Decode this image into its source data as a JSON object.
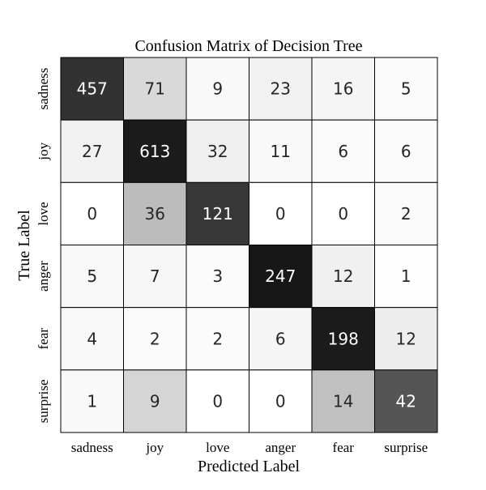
{
  "chart_data": {
    "type": "heatmap",
    "title": "Confusion Matrix of Decision Tree",
    "xlabel": "Predicted Label",
    "ylabel": "True Label",
    "x_categories": [
      "sadness",
      "joy",
      "love",
      "anger",
      "fear",
      "surprise"
    ],
    "y_categories": [
      "sadness",
      "joy",
      "love",
      "anger",
      "fear",
      "surprise"
    ],
    "values": [
      [
        457,
        71,
        9,
        23,
        16,
        5
      ],
      [
        27,
        613,
        32,
        11,
        6,
        6
      ],
      [
        0,
        36,
        121,
        0,
        0,
        2
      ],
      [
        5,
        7,
        3,
        247,
        12,
        1
      ],
      [
        4,
        2,
        2,
        6,
        198,
        12
      ],
      [
        1,
        9,
        0,
        0,
        14,
        42
      ]
    ],
    "colormap": "Greys",
    "normalization": "row",
    "colorbar": false,
    "grid": false
  }
}
